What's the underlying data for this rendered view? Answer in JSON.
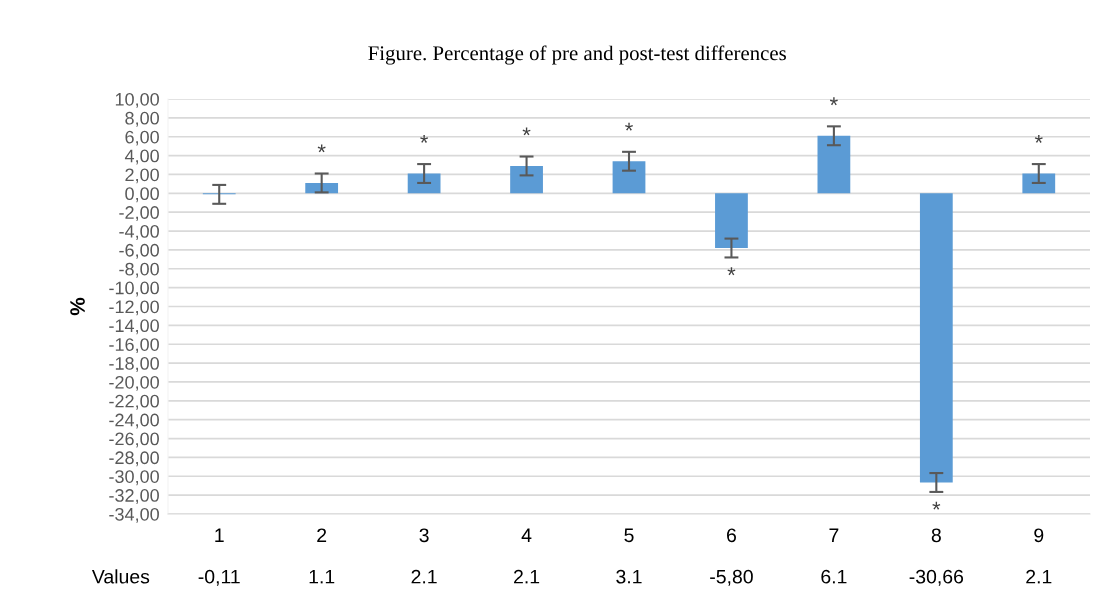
{
  "chart_data": {
    "type": "bar",
    "title": "Figure. Percentage of pre and post-test differences",
    "ylabel": "%",
    "categories": [
      "1",
      "2",
      "3",
      "4",
      "5",
      "6",
      "7",
      "8",
      "9"
    ],
    "values": [
      -0.11,
      1.1,
      2.1,
      2.9,
      3.4,
      -5.8,
      6.1,
      -30.66,
      2.1
    ],
    "errors": [
      1,
      1,
      1,
      1,
      1,
      1,
      1,
      1,
      1
    ],
    "color": "#5b9bd5",
    "ylim": [
      -34,
      10
    ],
    "yticks": [
      {
        "value": 10,
        "label": "10,00"
      },
      {
        "value": 8,
        "label": "8,00"
      },
      {
        "value": 6,
        "label": "6,00"
      },
      {
        "value": 4,
        "label": "4,00"
      },
      {
        "value": 2,
        "label": "2,00"
      },
      {
        "value": 0,
        "label": "0,00"
      },
      {
        "value": -2,
        "label": "-2,00"
      },
      {
        "value": -4,
        "label": "-4,00"
      },
      {
        "value": -6,
        "label": "-6,00"
      },
      {
        "value": -8,
        "label": "-8,00"
      },
      {
        "value": -10,
        "label": "-10,00"
      },
      {
        "value": -12,
        "label": "-12,00"
      },
      {
        "value": -14,
        "label": "-14,00"
      },
      {
        "value": -16,
        "label": "-16,00"
      },
      {
        "value": -18,
        "label": "-18,00"
      },
      {
        "value": -20,
        "label": "-20,00"
      },
      {
        "value": -22,
        "label": "-22,00"
      },
      {
        "value": -24,
        "label": "-24,00"
      },
      {
        "value": -26,
        "label": "-26,00"
      },
      {
        "value": -28,
        "label": "-28,00"
      },
      {
        "value": -30,
        "label": "-30,00"
      },
      {
        "value": -32,
        "label": "-32,00"
      },
      {
        "value": -34,
        "label": "-34,00"
      }
    ],
    "grid": "y",
    "annotations": [
      "Values",
      "-0,11",
      "1.1",
      "2.1",
      "2.1",
      "3.1",
      "-5,80",
      "6.1",
      "-30,66",
      "2.1",
      {
        "text": "*",
        "x": "2",
        "y": 2.1
      },
      {
        "text": "*",
        "x": "3",
        "y": 3.1
      },
      {
        "text": "*",
        "x": "4",
        "y": 3.9
      },
      {
        "text": "*",
        "x": "5",
        "y": 4.4
      },
      {
        "text": "*",
        "x": "6",
        "y": -6.8
      },
      {
        "text": "*",
        "x": "7",
        "y": 7.1
      },
      {
        "text": "*",
        "x": "8",
        "y": -31.66
      },
      {
        "text": "*",
        "x": "9",
        "y": 3.1
      }
    ]
  }
}
